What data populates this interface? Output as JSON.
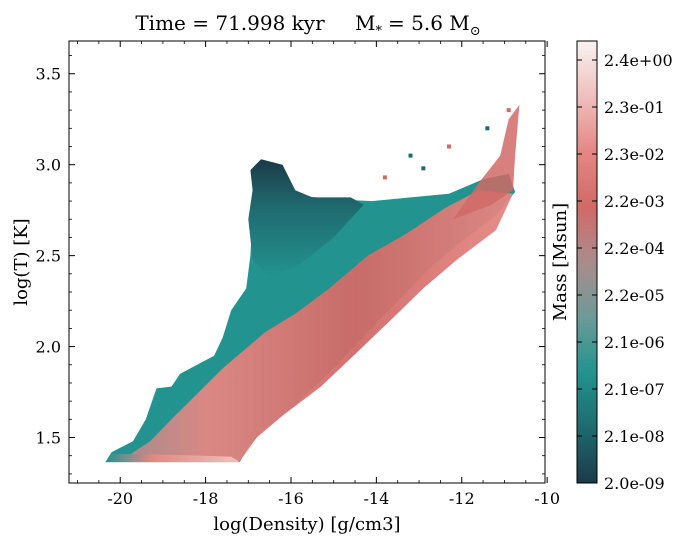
{
  "chart_data": {
    "type": "heatmap",
    "title": "Time = 71.998 kyr    M$_*$ = 5.6 M$_\\odot$",
    "title_parts": {
      "time_label": "Time = 71.998 kyr",
      "mass_symbol": "M",
      "mass_subscript": "*",
      "mass_value": "= 5.6 M",
      "mass_unit_subscript": "⊙"
    },
    "xlabel": "log(Density) [g/cm3]",
    "ylabel": "log(T) [K]",
    "xlim": [
      -21.2,
      -10.05
    ],
    "ylim": [
      1.25,
      3.68
    ],
    "x_ticks": [
      -20,
      -18,
      -16,
      -14,
      -12,
      -10
    ],
    "x_tick_labels": [
      "-20",
      "-18",
      "-16",
      "-14",
      "-12",
      "-10"
    ],
    "y_ticks": [
      1.5,
      2.0,
      2.5,
      3.0,
      3.5
    ],
    "y_tick_labels": [
      "1.5",
      "2.0",
      "2.5",
      "3.0",
      "3.5"
    ],
    "colorbar": {
      "label": "Mass [Msun]",
      "scale": "log",
      "tick_labels": [
        "2.0e-09",
        "2.1e-08",
        "2.1e-07",
        "2.1e-06",
        "2.2e-05",
        "2.2e-04",
        "2.2e-03",
        "2.3e-02",
        "2.3e-01",
        "2.4e+00"
      ],
      "colormap": [
        "#1c3a48",
        "#1f6a6f",
        "#22938f",
        "#6d9a98",
        "#a98c8c",
        "#d06a66",
        "#e48784",
        "#efbfbd",
        "#f9f2f2"
      ]
    },
    "regions": [
      {
        "name": "low-temperature tail",
        "x_range": [
          -20.35,
          -17.2
        ],
        "y_range": [
          1.37,
          1.41
        ],
        "mass_level": "high"
      },
      {
        "name": "main diagonal band",
        "x_range": [
          -19.5,
          -12.0
        ],
        "y_range": [
          1.4,
          2.6
        ],
        "mass_level": "high"
      },
      {
        "name": "upper cold-density envelope",
        "x_range": [
          -17.0,
          -14.5
        ],
        "y_range": [
          2.3,
          2.85
        ],
        "mass_level": "low"
      },
      {
        "name": "hot high-density tip",
        "x_range": [
          -12.5,
          -10.7
        ],
        "y_range": [
          2.6,
          3.35
        ],
        "mass_level": "high"
      },
      {
        "name": "hot low-density column",
        "x_range": [
          -17.0,
          -15.8
        ],
        "y_range": [
          2.7,
          3.03
        ],
        "mass_level": "low"
      }
    ]
  }
}
